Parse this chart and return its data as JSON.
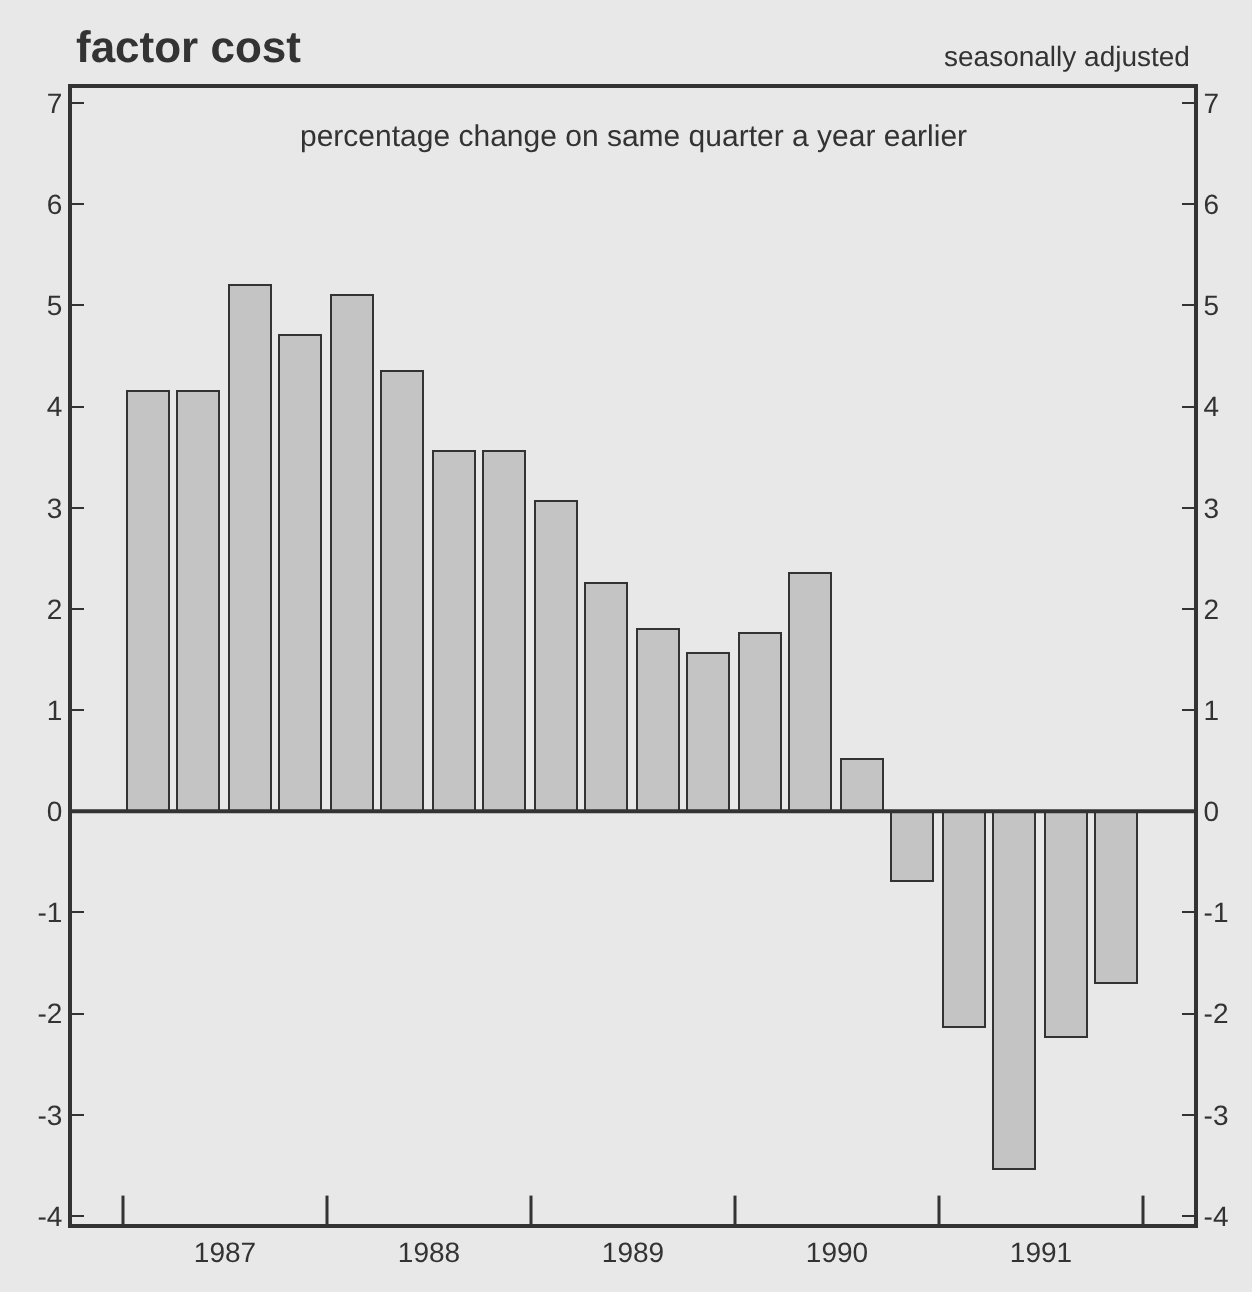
{
  "chart_data": {
    "type": "bar",
    "title": "factor cost",
    "subtitle": "seasonally adjusted",
    "annotations": [
      "percentage change on same quarter a year earlier"
    ],
    "x": [
      1987.125,
      1987.375,
      1987.625,
      1987.875,
      1988.125,
      1988.375,
      1988.625,
      1988.875,
      1989.125,
      1989.375,
      1989.625,
      1989.875,
      1990.125,
      1990.375,
      1990.625,
      1990.875,
      1991.125,
      1991.375,
      1991.625,
      1991.875
    ],
    "values": [
      4.15,
      4.15,
      5.2,
      4.7,
      5.1,
      4.35,
      3.55,
      3.55,
      3.05,
      2.25,
      1.8,
      1.55,
      1.75,
      2.35,
      0.5,
      -0.7,
      -2.15,
      -3.55,
      -2.25,
      -1.7
    ],
    "color": "#c4c4c4",
    "xlim": [
      1986.75,
      1992.25
    ],
    "xticks": [
      {
        "value": 1987,
        "label": null
      },
      {
        "value": 1987.5,
        "label": "1987"
      },
      {
        "value": 1988,
        "label": null
      },
      {
        "value": 1988.5,
        "label": "1988"
      },
      {
        "value": 1989,
        "label": null
      },
      {
        "value": 1989.5,
        "label": "1989"
      },
      {
        "value": 1990,
        "label": null
      },
      {
        "value": 1990.5,
        "label": "1990"
      },
      {
        "value": 1991,
        "label": null
      },
      {
        "value": 1991.5,
        "label": "1991"
      },
      {
        "value": 1992,
        "label": null
      }
    ],
    "ylim": [
      -4.08,
      7.15
    ],
    "yticks": [
      -4,
      -3,
      -2,
      -1,
      0,
      1,
      2,
      3,
      4,
      5,
      6,
      7
    ],
    "y2lim": [
      -4.08,
      7.15
    ],
    "y2ticks": [
      -4,
      -3,
      -2,
      -1,
      0,
      1,
      2,
      3,
      4,
      5,
      6,
      7
    ],
    "ref_lines": [
      {
        "axis": "y",
        "value": 0,
        "label": null,
        "color": "#333333"
      }
    ]
  }
}
